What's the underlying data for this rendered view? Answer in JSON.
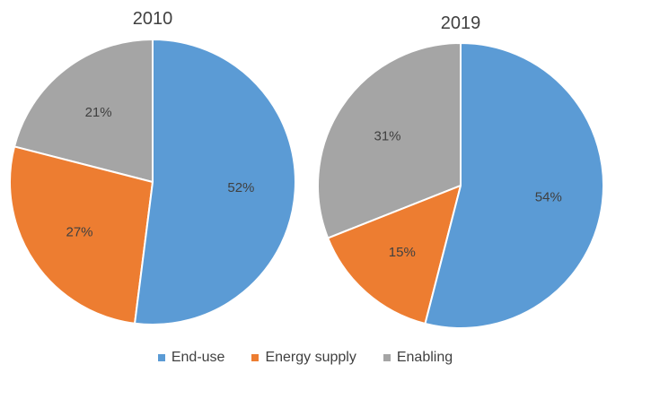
{
  "chart_data": {
    "type": "pie",
    "categories": [
      "End-use",
      "Energy supply",
      "Enabling"
    ],
    "colors": [
      "#5B9BD5",
      "#ED7D31",
      "#A5A5A5"
    ],
    "legend_position": "bottom",
    "charts": [
      {
        "title": "2010",
        "values": [
          52,
          27,
          21
        ],
        "labels": [
          "52%",
          "27%",
          "21%"
        ]
      },
      {
        "title": "2019",
        "values": [
          54,
          15,
          31
        ],
        "labels": [
          "54%",
          "15%",
          "31%"
        ]
      }
    ]
  }
}
